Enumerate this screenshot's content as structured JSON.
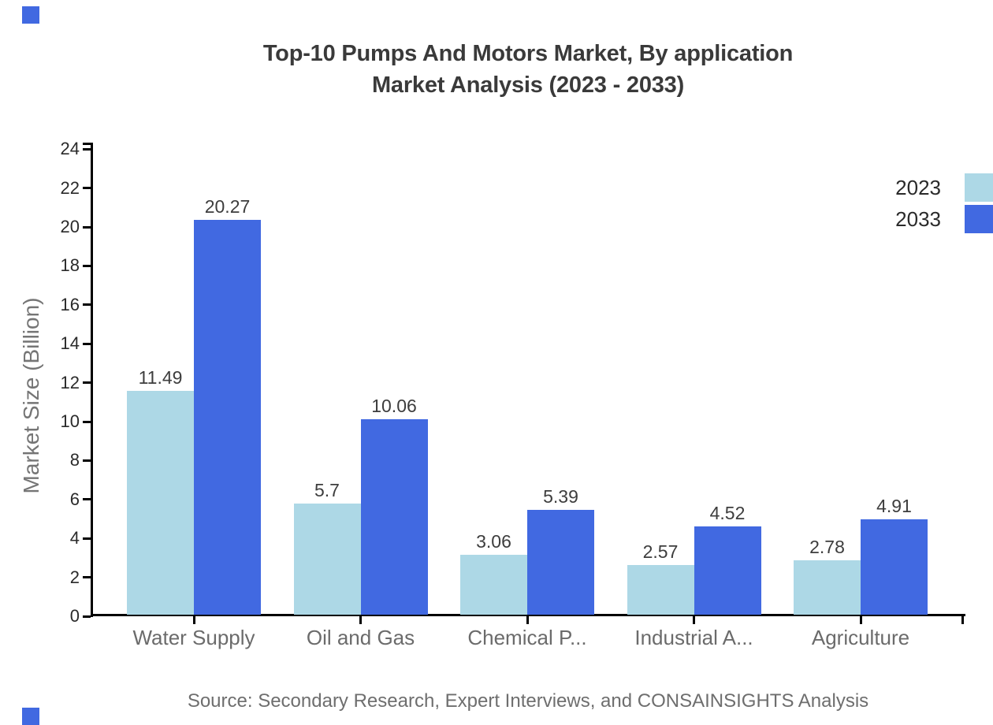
{
  "title": {
    "line1": "Top-10 Pumps And Motors Market, By application",
    "line2": "Market Analysis (2023 - 2033)"
  },
  "source": "Source: Secondary Research, Expert Interviews, and CONSAINSIGHTS Analysis",
  "y_axis": {
    "title": "Market Size (Billion)",
    "tick_values": [
      0,
      2,
      4,
      6,
      8,
      10,
      12,
      14,
      16,
      18,
      20,
      22,
      24
    ],
    "tick_labels": [
      "0",
      "2",
      "4",
      "6",
      "8",
      "10",
      "12",
      "14",
      "16",
      "18",
      "20",
      "22",
      "24"
    ],
    "min": 0,
    "max": 24
  },
  "legend": [
    {
      "label": "2023",
      "color": "#ADD8E6"
    },
    {
      "label": "2033",
      "color": "#4169E1"
    }
  ],
  "chart_data": {
    "type": "bar",
    "title": "Top-10 Pumps And Motors Market, By application Market Analysis (2023 - 2033)",
    "categories": [
      "Water Supply",
      "Oil and Gas",
      "Chemical P...",
      "Industrial A...",
      "Agriculture"
    ],
    "series": [
      {
        "name": "2023",
        "color": "#ADD8E6",
        "values": [
          11.49,
          5.7,
          3.06,
          2.57,
          2.78
        ],
        "labels": [
          "11.49",
          "5.7",
          "3.06",
          "2.57",
          "2.78"
        ]
      },
      {
        "name": "2033",
        "color": "#4169E1",
        "values": [
          20.27,
          10.06,
          5.39,
          4.52,
          4.91
        ],
        "labels": [
          "20.27",
          "10.06",
          "5.39",
          "4.52",
          "4.91"
        ]
      }
    ],
    "xlabel": "",
    "ylabel": "Market Size (Billion)",
    "ylim": [
      0,
      24
    ],
    "grid": false,
    "legend_position": "top-right",
    "value_labels_shown": true
  },
  "colors": {
    "series_2023": "#ADD8E6",
    "series_2033": "#4169E1",
    "axis": "#000000",
    "title_text": "#3a3a3a",
    "tick_label_text": "#2a2a2a",
    "category_label_text": "#6b6b6b",
    "muted_text": "#757575",
    "value_label_text": "#3d3d3d",
    "accent_marker": "#4169E1"
  }
}
